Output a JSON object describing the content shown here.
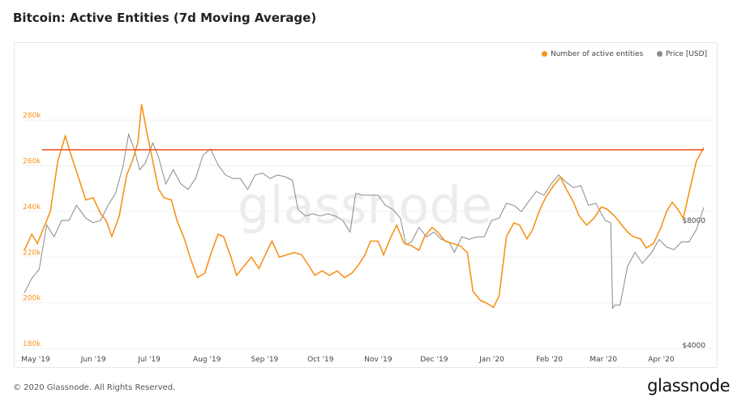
{
  "title": "Bitcoin: Active Entities (7d Moving Average)",
  "footer": "© 2020 Glassnode. All Rights Reserved.",
  "brand": "glassnode",
  "watermark": "glassnode",
  "colors": {
    "entities": "#f7931a",
    "price": "#8a8a8a",
    "threshold": "#f25c26",
    "axis_left": "#f7931a"
  },
  "legend": {
    "entities": "Number of active entities",
    "price": "Price [USD]"
  },
  "chart_data": {
    "type": "line",
    "x_ticks": [
      "May '19",
      "Jun '19",
      "Jul '19",
      "Aug '19",
      "Sep '19",
      "Oct '19",
      "Nov '19",
      "Dec '19",
      "Jan '20",
      "Feb '20",
      "Mar '20",
      "Apr '20"
    ],
    "y_left": {
      "ticks": [
        "180k",
        "200k",
        "220k",
        "240k",
        "260k",
        "280k"
      ],
      "range": [
        180000,
        290000
      ]
    },
    "y_right": {
      "ticks": [
        "$4000",
        "$8000"
      ],
      "scale": "log"
    },
    "threshold": 267000,
    "series": [
      {
        "name": "Number of active entities",
        "points": [
          [
            "2019-05-01",
            223000
          ],
          [
            "2019-05-05",
            230000
          ],
          [
            "2019-05-08",
            226000
          ],
          [
            "2019-05-12",
            234000
          ],
          [
            "2019-05-15",
            240000
          ],
          [
            "2019-05-19",
            262000
          ],
          [
            "2019-05-23",
            273000
          ],
          [
            "2019-05-26",
            265000
          ],
          [
            "2019-05-30",
            255000
          ],
          [
            "2019-06-03",
            245000
          ],
          [
            "2019-06-07",
            246000
          ],
          [
            "2019-06-11",
            239000
          ],
          [
            "2019-06-14",
            236000
          ],
          [
            "2019-06-17",
            229000
          ],
          [
            "2019-06-21",
            238000
          ],
          [
            "2019-06-25",
            256000
          ],
          [
            "2019-06-28",
            262000
          ],
          [
            "2019-07-01",
            270000
          ],
          [
            "2019-07-03",
            287000
          ],
          [
            "2019-07-06",
            274000
          ],
          [
            "2019-07-09",
            262000
          ],
          [
            "2019-07-12",
            250000
          ],
          [
            "2019-07-15",
            246000
          ],
          [
            "2019-07-19",
            245000
          ],
          [
            "2019-07-22",
            236000
          ],
          [
            "2019-07-26",
            228000
          ],
          [
            "2019-07-29",
            220000
          ],
          [
            "2019-08-02",
            211000
          ],
          [
            "2019-08-06",
            213000
          ],
          [
            "2019-08-09",
            221000
          ],
          [
            "2019-08-13",
            230000
          ],
          [
            "2019-08-16",
            229000
          ],
          [
            "2019-08-20",
            220000
          ],
          [
            "2019-08-23",
            212000
          ],
          [
            "2019-08-27",
            216000
          ],
          [
            "2019-08-31",
            220000
          ],
          [
            "2019-09-04",
            215000
          ],
          [
            "2019-09-08",
            222000
          ],
          [
            "2019-09-11",
            227000
          ],
          [
            "2019-09-15",
            220000
          ],
          [
            "2019-09-19",
            221000
          ],
          [
            "2019-09-23",
            222000
          ],
          [
            "2019-09-27",
            221000
          ],
          [
            "2019-10-01",
            216000
          ],
          [
            "2019-10-04",
            212000
          ],
          [
            "2019-10-08",
            214000
          ],
          [
            "2019-10-12",
            212000
          ],
          [
            "2019-10-16",
            214000
          ],
          [
            "2019-10-20",
            211000
          ],
          [
            "2019-10-24",
            213000
          ],
          [
            "2019-10-27",
            216000
          ],
          [
            "2019-10-31",
            221000
          ],
          [
            "2019-11-03",
            227000
          ],
          [
            "2019-11-07",
            227000
          ],
          [
            "2019-11-10",
            221000
          ],
          [
            "2019-11-14",
            229000
          ],
          [
            "2019-11-17",
            234000
          ],
          [
            "2019-11-21",
            226000
          ],
          [
            "2019-11-25",
            225000
          ],
          [
            "2019-11-29",
            223000
          ],
          [
            "2019-12-02",
            229000
          ],
          [
            "2019-12-06",
            233000
          ],
          [
            "2019-12-09",
            231000
          ],
          [
            "2019-12-13",
            227000
          ],
          [
            "2019-12-17",
            226000
          ],
          [
            "2019-12-21",
            225000
          ],
          [
            "2019-12-25",
            222000
          ],
          [
            "2019-12-28",
            205000
          ],
          [
            "2020-01-01",
            201000
          ],
          [
            "2020-01-04",
            200000
          ],
          [
            "2020-01-08",
            198000
          ],
          [
            "2020-01-11",
            203000
          ],
          [
            "2020-01-15",
            229000
          ],
          [
            "2020-01-19",
            235000
          ],
          [
            "2020-01-22",
            234000
          ],
          [
            "2020-01-26",
            228000
          ],
          [
            "2020-01-29",
            232000
          ],
          [
            "2020-02-02",
            241000
          ],
          [
            "2020-02-05",
            246000
          ],
          [
            "2020-02-09",
            251000
          ],
          [
            "2020-02-13",
            255000
          ],
          [
            "2020-02-16",
            250000
          ],
          [
            "2020-02-20",
            244000
          ],
          [
            "2020-02-23",
            238000
          ],
          [
            "2020-02-27",
            234000
          ],
          [
            "2020-03-02",
            237000
          ],
          [
            "2020-03-06",
            242000
          ],
          [
            "2020-03-09",
            241000
          ],
          [
            "2020-03-13",
            238000
          ],
          [
            "2020-03-16",
            235000
          ],
          [
            "2020-03-20",
            231000
          ],
          [
            "2020-03-23",
            229000
          ],
          [
            "2020-03-27",
            228000
          ],
          [
            "2020-03-30",
            224000
          ],
          [
            "2020-04-03",
            226000
          ],
          [
            "2020-04-07",
            233000
          ],
          [
            "2020-04-10",
            240000
          ],
          [
            "2020-04-13",
            244000
          ],
          [
            "2020-04-16",
            241000
          ],
          [
            "2020-04-19",
            237000
          ],
          [
            "2020-04-22",
            248000
          ],
          [
            "2020-04-26",
            262000
          ],
          [
            "2020-04-30",
            268000
          ]
        ]
      },
      {
        "name": "Price [USD]",
        "points": [
          [
            "2019-05-01",
            5350
          ],
          [
            "2019-05-05",
            5800
          ],
          [
            "2019-05-09",
            6100
          ],
          [
            "2019-05-13",
            7800
          ],
          [
            "2019-05-17",
            7300
          ],
          [
            "2019-05-21",
            8000
          ],
          [
            "2019-05-25",
            8000
          ],
          [
            "2019-05-29",
            8700
          ],
          [
            "2019-06-03",
            8100
          ],
          [
            "2019-06-07",
            7900
          ],
          [
            "2019-06-11",
            8000
          ],
          [
            "2019-06-15",
            8700
          ],
          [
            "2019-06-19",
            9300
          ],
          [
            "2019-06-23",
            10800
          ],
          [
            "2019-06-26",
            12900
          ],
          [
            "2019-06-29",
            11900
          ],
          [
            "2019-07-02",
            10600
          ],
          [
            "2019-07-05",
            11000
          ],
          [
            "2019-07-09",
            12300
          ],
          [
            "2019-07-12",
            11400
          ],
          [
            "2019-07-16",
            9800
          ],
          [
            "2019-07-20",
            10600
          ],
          [
            "2019-07-24",
            9800
          ],
          [
            "2019-07-28",
            9500
          ],
          [
            "2019-08-01",
            10100
          ],
          [
            "2019-08-05",
            11500
          ],
          [
            "2019-08-09",
            11900
          ],
          [
            "2019-08-13",
            10900
          ],
          [
            "2019-08-17",
            10300
          ],
          [
            "2019-08-21",
            10100
          ],
          [
            "2019-08-25",
            10100
          ],
          [
            "2019-08-29",
            9500
          ],
          [
            "2019-09-02",
            10300
          ],
          [
            "2019-09-06",
            10400
          ],
          [
            "2019-09-10",
            10100
          ],
          [
            "2019-09-14",
            10300
          ],
          [
            "2019-09-18",
            10200
          ],
          [
            "2019-09-22",
            10000
          ],
          [
            "2019-09-25",
            8500
          ],
          [
            "2019-09-29",
            8200
          ],
          [
            "2019-10-03",
            8300
          ],
          [
            "2019-10-07",
            8200
          ],
          [
            "2019-10-11",
            8300
          ],
          [
            "2019-10-15",
            8200
          ],
          [
            "2019-10-19",
            8000
          ],
          [
            "2019-10-23",
            7500
          ],
          [
            "2019-10-26",
            9300
          ],
          [
            "2019-10-30",
            9200
          ],
          [
            "2019-11-03",
            9200
          ],
          [
            "2019-11-07",
            9200
          ],
          [
            "2019-11-11",
            8700
          ],
          [
            "2019-11-15",
            8500
          ],
          [
            "2019-11-19",
            8100
          ],
          [
            "2019-11-22",
            7000
          ],
          [
            "2019-11-25",
            7100
          ],
          [
            "2019-11-29",
            7700
          ],
          [
            "2019-12-03",
            7300
          ],
          [
            "2019-12-07",
            7500
          ],
          [
            "2019-12-11",
            7200
          ],
          [
            "2019-12-15",
            7100
          ],
          [
            "2019-12-18",
            6700
          ],
          [
            "2019-12-22",
            7300
          ],
          [
            "2019-12-26",
            7200
          ],
          [
            "2019-12-30",
            7300
          ],
          [
            "2020-01-03",
            7300
          ],
          [
            "2020-01-07",
            8000
          ],
          [
            "2020-01-11",
            8100
          ],
          [
            "2020-01-15",
            8800
          ],
          [
            "2020-01-19",
            8700
          ],
          [
            "2020-01-23",
            8400
          ],
          [
            "2020-01-27",
            8900
          ],
          [
            "2020-01-31",
            9400
          ],
          [
            "2020-02-04",
            9200
          ],
          [
            "2020-02-08",
            9800
          ],
          [
            "2020-02-12",
            10300
          ],
          [
            "2020-02-16",
            9900
          ],
          [
            "2020-02-20",
            9600
          ],
          [
            "2020-02-24",
            9700
          ],
          [
            "2020-02-28",
            8700
          ],
          [
            "2020-03-03",
            8800
          ],
          [
            "2020-03-08",
            8000
          ],
          [
            "2020-03-11",
            7900
          ],
          [
            "2020-03-12",
            4900
          ],
          [
            "2020-03-13",
            5000
          ],
          [
            "2020-03-16",
            5000
          ],
          [
            "2020-03-20",
            6200
          ],
          [
            "2020-03-24",
            6700
          ],
          [
            "2020-03-28",
            6300
          ],
          [
            "2020-04-02",
            6700
          ],
          [
            "2020-04-06",
            7200
          ],
          [
            "2020-04-10",
            6900
          ],
          [
            "2020-04-14",
            6800
          ],
          [
            "2020-04-18",
            7100
          ],
          [
            "2020-04-22",
            7100
          ],
          [
            "2020-04-26",
            7600
          ],
          [
            "2020-04-30",
            8600
          ]
        ]
      }
    ]
  }
}
